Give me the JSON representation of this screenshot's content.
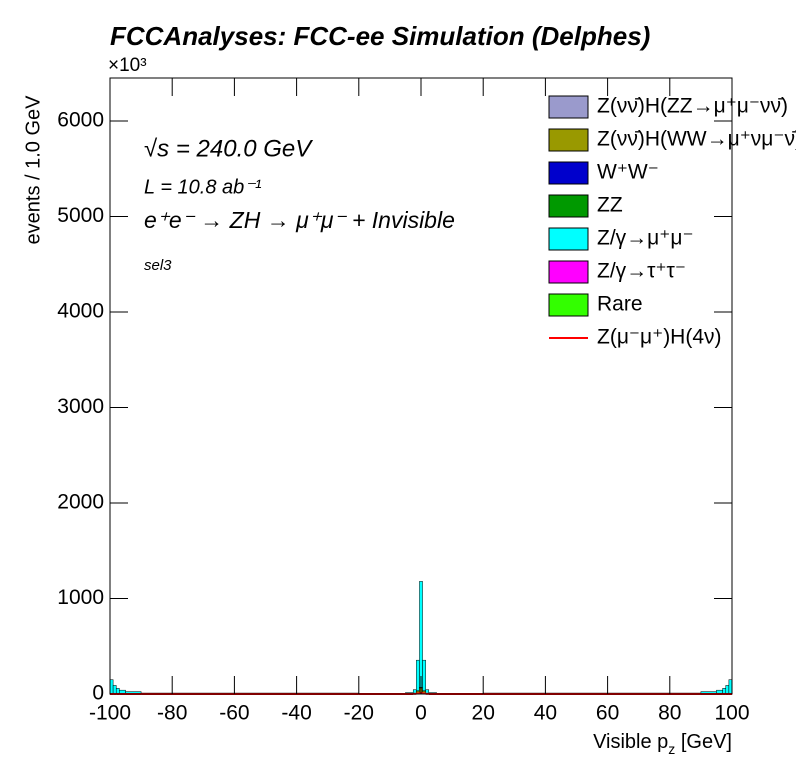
{
  "chart_data": {
    "type": "stacked_histogram",
    "title": "FCCAnalyses: FCC-ee Simulation (Delphes)",
    "y_label": "events / 1.0 GeV",
    "y_multiplier": "×10³",
    "x_label": [
      "Visible p",
      "z",
      " [GeV]"
    ],
    "annotations": [
      "√s = 240.0 GeV",
      "L = 10.8 ab⁻¹",
      "e⁺e⁻ → ZH → μ⁺μ⁻ + Invisible",
      "sel3"
    ],
    "bins": [
      -100,
      -99,
      -98,
      -97,
      -95,
      -90,
      -20,
      -5,
      -2.5,
      -1.5,
      -0.5,
      0.5,
      1.5,
      2.5,
      5,
      20,
      90,
      95,
      97,
      98,
      99,
      100
    ],
    "series": [
      {
        "name": "Z(νν̄)H(ZZ→μ⁺μ⁻νν̄)",
        "color": "#9a9acc",
        "values": [
          0,
          0,
          0,
          0,
          0,
          0,
          0,
          0,
          0,
          2,
          4,
          2,
          0,
          0,
          0,
          0,
          0,
          0,
          0,
          0,
          0
        ]
      },
      {
        "name": "Z(νν̄)H(WW→μ⁺νμ⁻ν̄)",
        "color": "#999900",
        "values": [
          0,
          0,
          0,
          0,
          0,
          0,
          0,
          0,
          5,
          30,
          60,
          30,
          5,
          0,
          0,
          0,
          0,
          0,
          0,
          0,
          0
        ]
      },
      {
        "name": "W⁺W⁻",
        "color": "#0000cc",
        "values": [
          0,
          0,
          0,
          0,
          0,
          0,
          0,
          0,
          0,
          0,
          0,
          0,
          0,
          0,
          0,
          0,
          0,
          0,
          0,
          0,
          0
        ]
      },
      {
        "name": "ZZ",
        "color": "#009900",
        "values": [
          0,
          0,
          0,
          0,
          0,
          0,
          0,
          0,
          0,
          2,
          5,
          2,
          0,
          0,
          0,
          0,
          0,
          0,
          0,
          0,
          0
        ]
      },
      {
        "name": "Z/γ→μ⁺μ⁻",
        "color": "#00ffff",
        "values": [
          150,
          90,
          60,
          40,
          25,
          10,
          5,
          15,
          40,
          320,
          1110,
          320,
          40,
          15,
          5,
          10,
          25,
          40,
          60,
          90,
          150
        ]
      },
      {
        "name": "Z/γ→τ⁺τ⁻",
        "color": "#ff00ff",
        "values": [
          0,
          0,
          0,
          0,
          0,
          0,
          0,
          0,
          0,
          0,
          0,
          0,
          0,
          0,
          0,
          0,
          0,
          0,
          0,
          0,
          0
        ]
      },
      {
        "name": "Rare",
        "color": "#33ff00",
        "values": [
          0,
          0,
          0,
          0,
          0,
          0,
          0,
          0,
          0,
          0,
          0,
          0,
          0,
          0,
          0,
          0,
          0,
          0,
          0,
          0,
          0
        ]
      }
    ],
    "signal": {
      "name": "Z(μ⁻μ⁺)H(4ν)",
      "color": "#ff0000",
      "values": [
        0,
        0,
        0,
        0,
        0,
        0,
        0,
        0,
        2,
        5,
        10,
        5,
        2,
        0,
        0,
        0,
        0,
        0,
        0,
        0,
        0
      ]
    },
    "xlim": [
      -100,
      100
    ],
    "xticks": [
      -100,
      -80,
      -60,
      -40,
      -20,
      0,
      20,
      40,
      60,
      80,
      100
    ],
    "ylim": [
      0,
      6450
    ],
    "yticks": [
      0,
      1000,
      2000,
      3000,
      4000,
      5000,
      6000
    ]
  }
}
